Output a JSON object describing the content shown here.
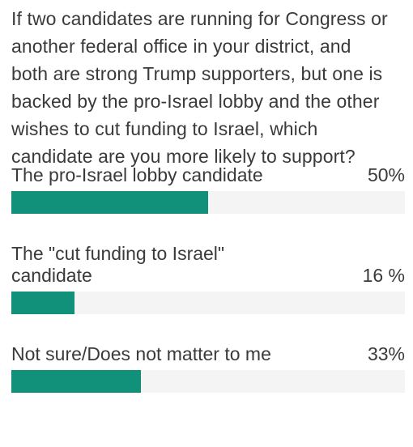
{
  "poll": {
    "question": "If two candidates are running for Congress or another federal office in your district, and both are strong Trump supporters, but one is backed by the pro-Israel lobby and the other wishes to cut funding to Israel, which candidate are you more likely to support?",
    "bar_color": "#11907a",
    "track_color": "#f4f4f4",
    "options": [
      {
        "label": "The pro-Israel lobby candidate",
        "percent_text": "50%",
        "percent": 50
      },
      {
        "label": "The \"cut funding to Israel\" candidate",
        "percent_text": "16 %",
        "percent": 16
      },
      {
        "label": "Not sure/Does not matter to me",
        "percent_text": "33%",
        "percent": 33
      }
    ]
  }
}
